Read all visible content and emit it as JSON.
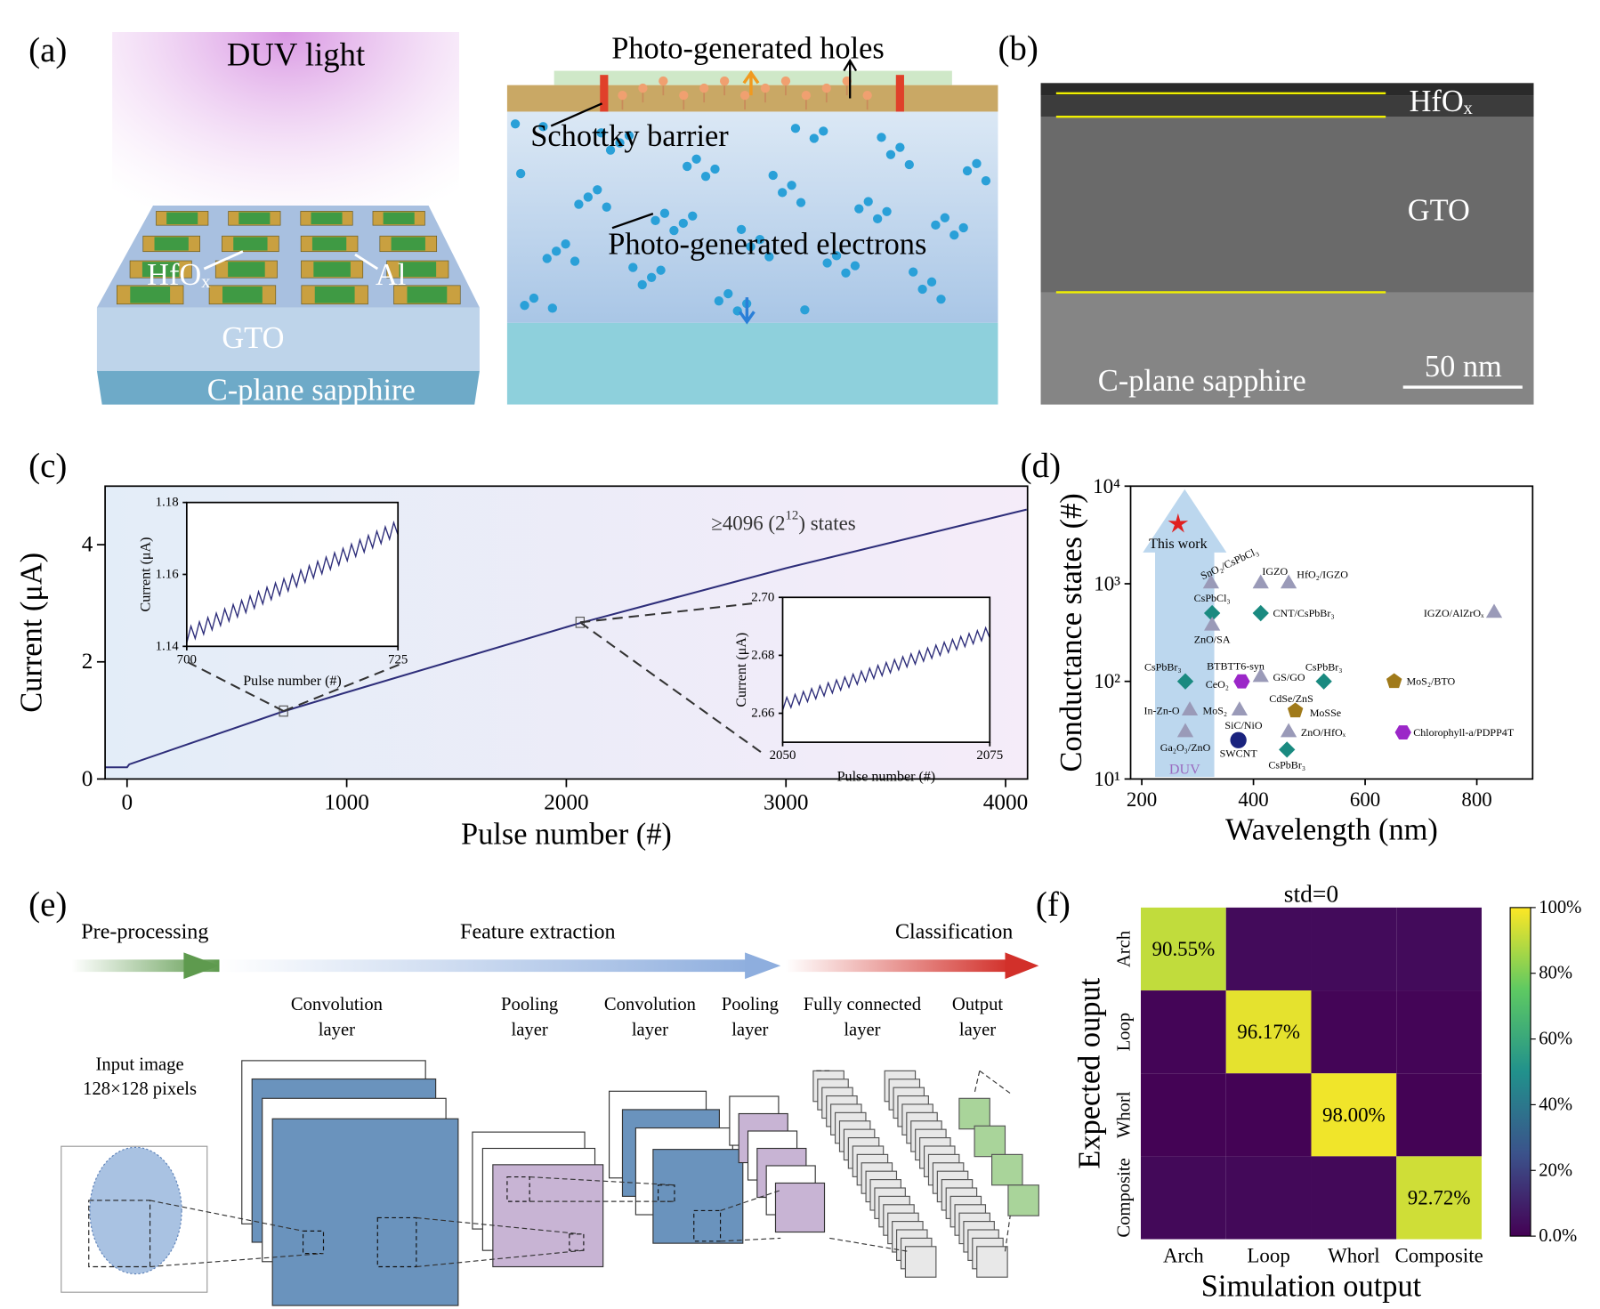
{
  "panel_labels": [
    "(a)",
    "(b)",
    "(c)",
    "(d)",
    "(e)",
    "(f)"
  ],
  "panel_a": {
    "light": "DUV light",
    "hfo": "HfOₓ",
    "al": "Al",
    "gto": "GTO",
    "substrate": "C-plane sapphire",
    "holes": "Photo-generated holes",
    "barrier": "Schottky barrier",
    "electrons": "Photo-generated electrons"
  },
  "panel_b": {
    "hfo": "HfOₓ",
    "gto": "GTO",
    "substrate": "C-plane sapphire",
    "scale": "50 nm"
  },
  "panel_e": {
    "stages": [
      "Pre-processing",
      "Feature extraction",
      "Classification"
    ],
    "layers": [
      [
        "Convolution",
        "layer"
      ],
      [
        "Pooling",
        "layer"
      ],
      [
        "Convolution",
        "layer"
      ],
      [
        "Pooling",
        "layer"
      ],
      [
        "Fully connected",
        "layer"
      ],
      [
        "Output",
        "layer"
      ]
    ],
    "input": [
      "Input image",
      "128×128 pixels"
    ]
  },
  "chart_data": [
    {
      "type": "line",
      "xlabel": "Pulse number (#)",
      "ylabel": "Current (μA)",
      "annotation": {
        "text": "≥4096 (2",
        "sup": "12",
        "tail": ") states"
      },
      "xlim": [
        -100,
        4100
      ],
      "xticks": [
        0,
        1000,
        2000,
        3000,
        4000
      ],
      "ylim": [
        0,
        5
      ],
      "yticks": [
        0,
        2,
        4
      ],
      "series": [
        {
          "color": "#2e2e7a",
          "x": [
            -100,
            0,
            10,
            700,
            1000,
            2060,
            3000,
            4096
          ],
          "values": [
            0.2,
            0.2,
            0.25,
            1.14,
            1.48,
            2.66,
            3.6,
            4.6
          ]
        }
      ],
      "insets": [
        {
          "type": "line",
          "xlabel": "Pulse number (#)",
          "ylabel": "Current (μA)",
          "xlim": [
            700,
            725
          ],
          "xticks": [
            700,
            725
          ],
          "ylim": [
            1.14,
            1.18
          ],
          "yticks": [
            1.14,
            1.16,
            1.18
          ],
          "series": [
            {
              "color": "#2e2e7a",
              "x": [
                700,
                700.5,
                701,
                701.5,
                702,
                702.5,
                703,
                703.5,
                704,
                704.5,
                705,
                705.5,
                706,
                706.5,
                707,
                707.5,
                708,
                708.5,
                709,
                709.5,
                710,
                710.5,
                711,
                711.5,
                712,
                712.5,
                713,
                713.5,
                714,
                714.5,
                715,
                715.5,
                716,
                716.5,
                717,
                717.5,
                718,
                718.5,
                719,
                719.5,
                720,
                720.5,
                721,
                721.5,
                722,
                722.5,
                723,
                723.5,
                724,
                724.5,
                725
              ],
              "values": [
                1.141,
                1.1456,
                1.1422,
                1.1468,
                1.1434,
                1.148,
                1.1446,
                1.1492,
                1.1458,
                1.1504,
                1.147,
                1.1516,
                1.1482,
                1.1528,
                1.1494,
                1.154,
                1.1506,
                1.1552,
                1.1518,
                1.1564,
                1.153,
                1.1576,
                1.1542,
                1.1588,
                1.1554,
                1.16,
                1.1566,
                1.1612,
                1.1578,
                1.1624,
                1.159,
                1.1636,
                1.1602,
                1.1648,
                1.1614,
                1.166,
                1.1626,
                1.1672,
                1.1638,
                1.1684,
                1.165,
                1.1696,
                1.1662,
                1.1708,
                1.1674,
                1.172,
                1.1686,
                1.1732,
                1.1698,
                1.1744,
                1.171
              ]
            }
          ]
        },
        {
          "type": "line",
          "xlabel": "Pulse number (#)",
          "ylabel": "Current (μA)",
          "xlim": [
            2050,
            2075
          ],
          "xticks": [
            2050,
            2075
          ],
          "ylim": [
            2.65,
            2.7
          ],
          "yticks": [
            2.66,
            2.68,
            {
              "value": 2.7,
              "label": "2.70"
            }
          ],
          "series": [
            {
              "color": "#2e2e7a",
              "x": [
                2050,
                2050.5,
                2051,
                2051.5,
                2052,
                2052.5,
                2053,
                2053.5,
                2054,
                2054.5,
                2055,
                2055.5,
                2056,
                2056.5,
                2057,
                2057.5,
                2058,
                2058.5,
                2059,
                2059.5,
                2060,
                2060.5,
                2061,
                2061.5,
                2062,
                2062.5,
                2063,
                2063.5,
                2064,
                2064.5,
                2065,
                2065.5,
                2066,
                2066.5,
                2067,
                2067.5,
                2068,
                2068.5,
                2069,
                2069.5,
                2070,
                2070.5,
                2071,
                2071.5,
                2072,
                2072.5,
                2073,
                2073.5,
                2074,
                2074.5,
                2075
              ],
              "values": [
                2.661,
                2.6655,
                2.662,
                2.6665,
                2.663,
                2.6675,
                2.664,
                2.6685,
                2.665,
                2.6695,
                2.666,
                2.6705,
                2.667,
                2.6715,
                2.668,
                2.6725,
                2.669,
                2.6735,
                2.67,
                2.6745,
                2.671,
                2.6755,
                2.672,
                2.6765,
                2.673,
                2.6775,
                2.674,
                2.6785,
                2.675,
                2.6795,
                2.676,
                2.6805,
                2.677,
                2.6815,
                2.678,
                2.6825,
                2.679,
                2.6835,
                2.68,
                2.6845,
                2.681,
                2.6855,
                2.682,
                2.6865,
                2.683,
                2.6875,
                2.684,
                2.6885,
                2.685,
                2.6895,
                2.686
              ]
            }
          ]
        }
      ]
    },
    {
      "type": "scatter",
      "xlabel": "Wavelength (nm)",
      "ylabel": "Conductance states (#)",
      "annotation": "DUV",
      "xlim": [
        180,
        900
      ],
      "xticks": [
        200,
        400,
        600,
        800
      ],
      "ylim": [
        10,
        10000
      ],
      "yscale": "log",
      "yticks": [
        {
          "value": 10,
          "label": "10¹"
        },
        {
          "value": 100,
          "label": "10²"
        },
        {
          "value": 1000,
          "label": "10³"
        },
        {
          "value": 10000,
          "label": "10⁴"
        }
      ],
      "points": [
        {
          "x": 265,
          "y": 4096,
          "marker": "star",
          "color": "#e02020",
          "labels": [
            "This work"
          ]
        },
        {
          "x": 324,
          "y": 1000,
          "marker": "triangle",
          "color": "#9a9ab8",
          "labels": [
            "SnO₂/CsPbCl₃"
          ]
        },
        {
          "x": 413,
          "y": 1000,
          "marker": "triangle",
          "color": "#9a9ab8",
          "labels": [
            "IGZO"
          ]
        },
        {
          "x": 463,
          "y": 1000,
          "marker": "triangle",
          "color": "#9a9ab8",
          "labels": [
            "HfO₂/IGZO"
          ]
        },
        {
          "x": 326,
          "y": 500,
          "marker": "diamond",
          "color": "#1a8a80",
          "labels": [
            "CsPbCl₃"
          ]
        },
        {
          "x": 413,
          "y": 500,
          "marker": "diamond",
          "color": "#1a8a80",
          "labels": [
            "CNT/CsPbBr₃"
          ]
        },
        {
          "x": 326,
          "y": 370,
          "marker": "triangle",
          "color": "#9a9ab8",
          "labels": [
            "ZnO/SA"
          ]
        },
        {
          "x": 278,
          "y": 100,
          "marker": "diamond",
          "color": "#1a8a80",
          "labels": [
            "CsPbBr₃"
          ]
        },
        {
          "x": 379,
          "y": 100,
          "marker": "hexagon",
          "color": "#9b27c8",
          "labels": [
            "BTBTT6-syn",
            "CeO₂"
          ]
        },
        {
          "x": 413,
          "y": 110,
          "marker": "triangle",
          "color": "#9a9ab8",
          "labels": [
            "GS/GO"
          ]
        },
        {
          "x": 526,
          "y": 100,
          "marker": "diamond",
          "color": "#1a8a80",
          "labels": [
            "CsPbBr₃"
          ]
        },
        {
          "x": 652,
          "y": 100,
          "marker": "pentagon",
          "color": "#a07a1a",
          "labels": [
            "MoS₂/BTO"
          ]
        },
        {
          "x": 831,
          "y": 500,
          "marker": "triangle",
          "color": "#9a9ab8",
          "labels": [
            "IGZO/AlZrOₓ"
          ]
        },
        {
          "x": 286,
          "y": 50,
          "marker": "triangle",
          "color": "#9a9ab8",
          "labels": [
            "In-Zn-O"
          ]
        },
        {
          "x": 375,
          "y": 50,
          "marker": "triangle",
          "color": "#9a9ab8",
          "labels": [
            "MoS₂",
            "SiC/NiO"
          ]
        },
        {
          "x": 475,
          "y": 50,
          "marker": "pentagon",
          "color": "#a07a1a",
          "labels": [
            "CdSe/ZnS",
            "MoSSe"
          ]
        },
        {
          "x": 278,
          "y": 30,
          "marker": "triangle",
          "color": "#9a9ab8",
          "labels": [
            "Ga₂O₃/ZnO"
          ]
        },
        {
          "x": 373,
          "y": 25,
          "marker": "circle",
          "color": "#1a237e",
          "labels": [
            "SWCNT"
          ]
        },
        {
          "x": 463,
          "y": 30,
          "marker": "triangle",
          "color": "#9a9ab8",
          "labels": [
            "ZnO/HfOₓ"
          ]
        },
        {
          "x": 460,
          "y": 20,
          "marker": "diamond",
          "color": "#1a8a80",
          "labels": [
            "CsPbBr₃"
          ]
        },
        {
          "x": 668,
          "y": 30,
          "marker": "hexagon",
          "color": "#9b27c8",
          "labels": [
            "Chlorophyll-a/PDPP4T"
          ]
        }
      ]
    },
    {
      "type": "heatmap",
      "title": "std=0",
      "xlabel": "Simulation output",
      "ylabel": "Expected ouput",
      "categories": [
        "Arch",
        "Loop",
        "Whorl",
        "Composite"
      ],
      "values": [
        [
          90.55,
          3.15,
          3.15,
          3.15
        ],
        [
          1.28,
          96.17,
          1.28,
          1.27
        ],
        [
          0.67,
          0.67,
          98.0,
          0.66
        ],
        [
          2.43,
          2.43,
          2.42,
          92.72
        ]
      ],
      "value_labels": [
        [
          "90.55%",
          null,
          null,
          null
        ],
        [
          null,
          "96.17%",
          null,
          null
        ],
        [
          null,
          null,
          "98.00%",
          null
        ],
        [
          null,
          null,
          null,
          "92.72%"
        ]
      ],
      "colormap": "viridis",
      "clim": [
        0,
        100
      ],
      "cticks": [
        {
          "value": 0,
          "label": "0.0%"
        },
        {
          "value": 20,
          "label": "20%"
        },
        {
          "value": 40,
          "label": "40%"
        },
        {
          "value": 60,
          "label": "60%"
        },
        {
          "value": 80,
          "label": "80%"
        },
        {
          "value": 100,
          "label": "100%"
        }
      ]
    }
  ]
}
